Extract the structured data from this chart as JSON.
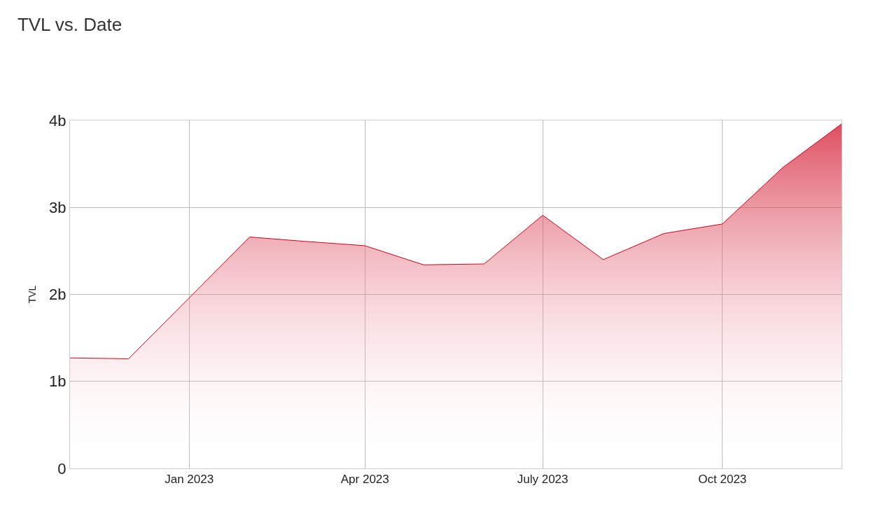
{
  "chart_data": {
    "type": "area",
    "title": "TVL vs. Date",
    "ylabel": "TVL",
    "x": [
      "2022-11-01",
      "2022-12-01",
      "2023-01-01",
      "2023-02-01",
      "2023-03-01",
      "2023-04-01",
      "2023-05-01",
      "2023-06-01",
      "2023-07-01",
      "2023-08-01",
      "2023-09-01",
      "2023-10-01",
      "2023-11-01",
      "2023-12-01"
    ],
    "series": [
      {
        "color": "#d0021b",
        "values": [
          1.27,
          1.26,
          1.96,
          2.66,
          2.61,
          2.56,
          2.34,
          2.35,
          2.91,
          2.4,
          2.7,
          2.81,
          3.46,
          3.96
        ]
      }
    ],
    "xlim": [
      "2022-11-01",
      "2023-12-01"
    ],
    "xticks": [
      {
        "value": "2023-01-01",
        "label": "Jan 2023"
      },
      {
        "value": "2023-04-01",
        "label": "Apr 2023"
      },
      {
        "value": "2023-07-01",
        "label": "July 2023"
      },
      {
        "value": "2023-10-01",
        "label": "Oct 2023"
      }
    ],
    "ylim": [
      0,
      4
    ],
    "yticks": [
      {
        "value": 0,
        "label": "0"
      },
      {
        "value": 1,
        "label": "1b"
      },
      {
        "value": 2,
        "label": "2b"
      },
      {
        "value": 3,
        "label": "3b"
      },
      {
        "value": 4,
        "label": "4b"
      }
    ],
    "grid": true
  }
}
